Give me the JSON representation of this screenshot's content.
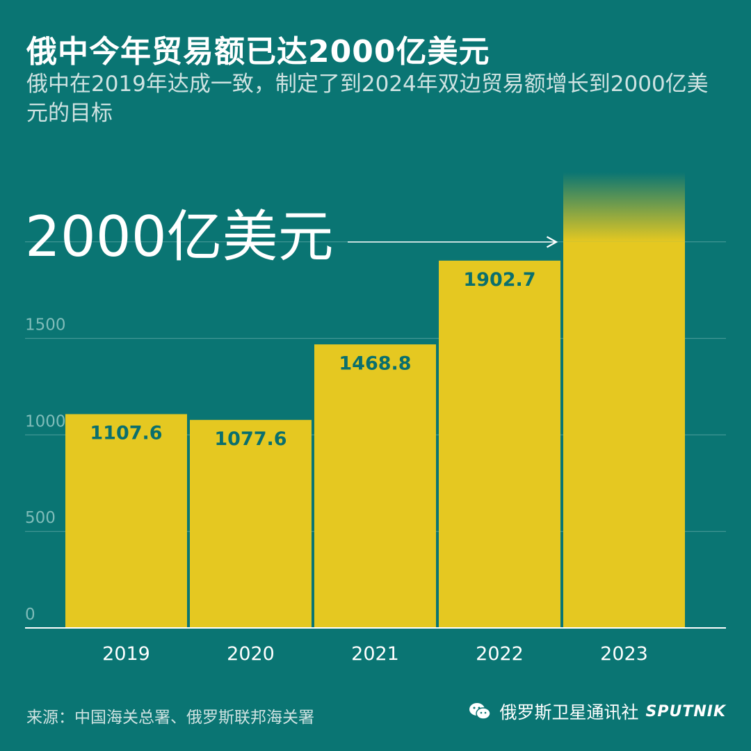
{
  "header": {
    "title": "俄中今年贸易额已达2000亿美元",
    "subtitle": "俄中在2019年达成一致，制定了到2024年双边贸易额增长到2000亿美元的目标"
  },
  "chart_data": {
    "type": "bar",
    "categories": [
      "2019",
      "2020",
      "2021",
      "2022",
      "2023"
    ],
    "values": [
      1107.6,
      1077.6,
      1468.8,
      1902.7,
      2000
    ],
    "value_labels": [
      "1107.6",
      "1077.6",
      "1468.8",
      "1902.7",
      ""
    ],
    "y_ticks": [
      0,
      500,
      1000,
      1500
    ],
    "ylim": [
      0,
      2300
    ],
    "grid": true,
    "target_annotation": "2000亿美元",
    "colors": {
      "background": "#0a7573",
      "bar": "#e5c821",
      "value_label": "#0a6f6d",
      "grid": "#4f9e9b",
      "text": "#ffffff"
    }
  },
  "footer": {
    "source": "来源：中国海关总署、俄罗斯联邦海关署",
    "brand_name": "俄罗斯卫星通讯社",
    "brand_logo": "SPUTNIK",
    "brand_icon": "wechat-icon"
  }
}
